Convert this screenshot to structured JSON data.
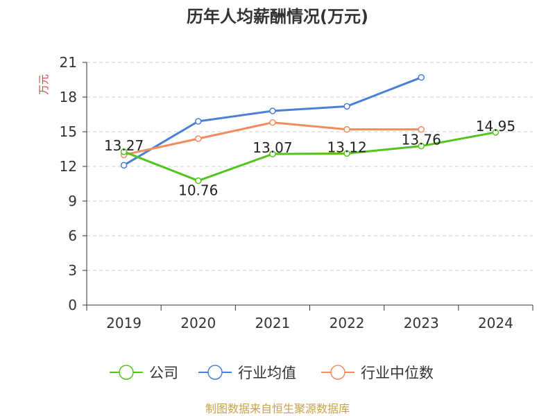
{
  "chart_data": {
    "type": "line",
    "title": "历年人均薪酬情况(万元)",
    "ylabel": "万元",
    "xlabel": "",
    "categories": [
      "2019",
      "2020",
      "2021",
      "2022",
      "2023",
      "2024"
    ],
    "ylim": [
      0,
      21
    ],
    "yticks": [
      0,
      3,
      6,
      9,
      12,
      15,
      18,
      21
    ],
    "grid": "horizontal-dashed",
    "legend_position": "bottom",
    "series": [
      {
        "name": "公司",
        "color": "#52c41a",
        "values": [
          13.27,
          10.76,
          13.07,
          13.12,
          13.76,
          14.95
        ],
        "labels": [
          "13.27",
          "10.76",
          "13.07",
          "13.12",
          "13.76",
          "14.95"
        ]
      },
      {
        "name": "行业均值",
        "color": "#4a7fd6",
        "values": [
          12.1,
          15.9,
          16.8,
          17.2,
          19.7,
          null
        ]
      },
      {
        "name": "行业中位数",
        "color": "#f28c5f",
        "values": [
          13.0,
          14.4,
          15.8,
          15.2,
          15.2,
          null
        ]
      }
    ]
  },
  "colors": {
    "ylabel": "#e03c3c",
    "source": "#c9a14a",
    "axis": "#333333",
    "grid": "#cccccc"
  },
  "source_text": "制图数据来自恒生聚源数据库"
}
